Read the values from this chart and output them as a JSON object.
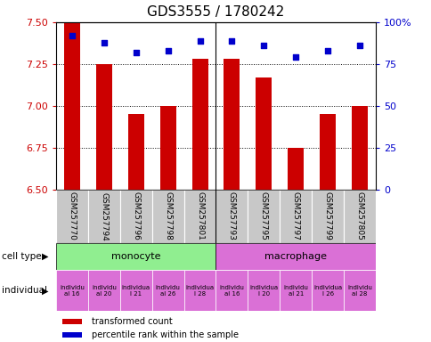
{
  "title": "GDS3555 / 1780242",
  "samples": [
    "GSM257770",
    "GSM257794",
    "GSM257796",
    "GSM257798",
    "GSM257801",
    "GSM257793",
    "GSM257795",
    "GSM257797",
    "GSM257799",
    "GSM257805"
  ],
  "transformed_counts": [
    7.5,
    7.25,
    6.95,
    7.0,
    7.28,
    7.28,
    7.17,
    6.75,
    6.95,
    7.0
  ],
  "percentile_ranks": [
    92,
    88,
    82,
    83,
    89,
    89,
    86,
    79,
    83,
    86
  ],
  "ylim_left": [
    6.5,
    7.5
  ],
  "ylim_right": [
    0,
    100
  ],
  "yticks_left": [
    6.5,
    6.75,
    7.0,
    7.25,
    7.5
  ],
  "yticks_right": [
    0,
    25,
    50,
    75,
    100
  ],
  "ytick_right_labels": [
    "0",
    "25",
    "50",
    "75",
    "100%"
  ],
  "cell_types": [
    {
      "label": "monocyte",
      "start": 0,
      "end": 5,
      "color": "#90EE90"
    },
    {
      "label": "macrophage",
      "start": 5,
      "end": 10,
      "color": "#DA70D6"
    }
  ],
  "ind_texts": [
    "individu\nal 16",
    "individu\nal 20",
    "individua\nl 21",
    "individu\nal 26",
    "individua\nl 28",
    "individu\nal 16",
    "individua\nl 20",
    "individu\nal 21",
    "individua\nl 26",
    "individu\nal 28"
  ],
  "bar_color": "#CC0000",
  "dot_color": "#0000CC",
  "bar_width": 0.5,
  "tick_color_left": "#CC0000",
  "tick_color_right": "#0000CC",
  "legend_transformed": "transformed count",
  "legend_percentile": "percentile rank within the sample",
  "cell_type_label": "cell type",
  "individual_label": "individual",
  "sample_bg": "#C8C8C8",
  "ind_bg": "#DA70D6"
}
